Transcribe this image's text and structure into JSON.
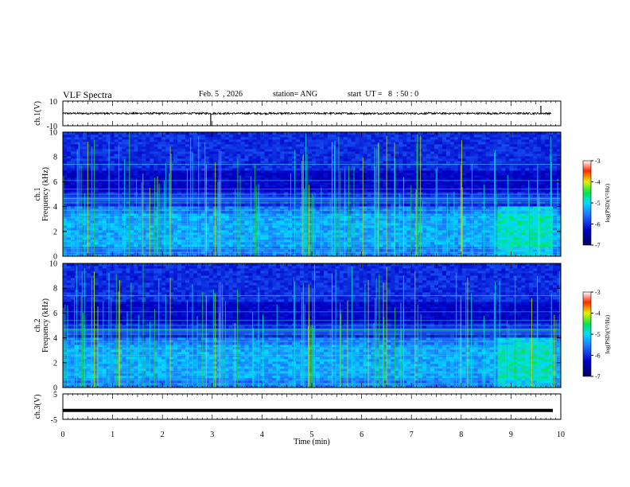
{
  "header": {
    "title": "VLF Spectra",
    "date": "Feb. 5  , 2026",
    "station": "station= ANG",
    "start": "start  UT =   8  : 50 : 0"
  },
  "chart_data": [
    {
      "type": "line",
      "panel": "ch1-waveform",
      "ylabel": "ch.1(V)",
      "ylim": [
        -10,
        10
      ],
      "yticks": [
        "10",
        "-10"
      ],
      "x_range": [
        0,
        10
      ],
      "baseline": 0
    },
    {
      "type": "heatmap",
      "panel": "ch1-spectrogram",
      "ylabel": "ch.1\nFrequency (kHz)",
      "ylim": [
        0,
        10
      ],
      "yticks": [
        "0",
        "2",
        "4",
        "6",
        "8",
        "10"
      ],
      "x_range": [
        0,
        10
      ],
      "colorbar": {
        "label": "log(PSD)(V²/Hz)",
        "range": [
          -7,
          -3
        ],
        "ticks": [
          "-3",
          "-4",
          "-5",
          "-6",
          "-7"
        ]
      }
    },
    {
      "type": "heatmap",
      "panel": "ch2-spectrogram",
      "ylabel": "ch.2\nFrequency (kHz)",
      "ylim": [
        0,
        10
      ],
      "yticks": [
        "0",
        "2",
        "4",
        "6",
        "8",
        "10"
      ],
      "x_range": [
        0,
        10
      ],
      "colorbar": {
        "label": "log(PSD)(V²/Hz)",
        "range": [
          -7,
          -3
        ],
        "ticks": [
          "-3",
          "-4",
          "-5",
          "-6",
          "-7"
        ]
      }
    },
    {
      "type": "line",
      "panel": "ch3-waveform",
      "ylabel": "ch.3(V)",
      "ylim": [
        -5,
        5
      ],
      "yticks": [
        "5",
        "-5"
      ],
      "x_range": [
        0,
        10
      ],
      "baseline": -1.5
    }
  ],
  "xaxis": {
    "label": "Time  (min)",
    "ticks": [
      "0",
      "1",
      "2",
      "3",
      "4",
      "5",
      "6",
      "7",
      "8",
      "9",
      "10"
    ]
  },
  "colors": {
    "low": "#000080",
    "mid": "#1e64ff",
    "cyan": "#00e6ff",
    "green": "#00e000",
    "yellow": "#ffff00",
    "red": "#ff0000",
    "high": "#ffffff"
  }
}
